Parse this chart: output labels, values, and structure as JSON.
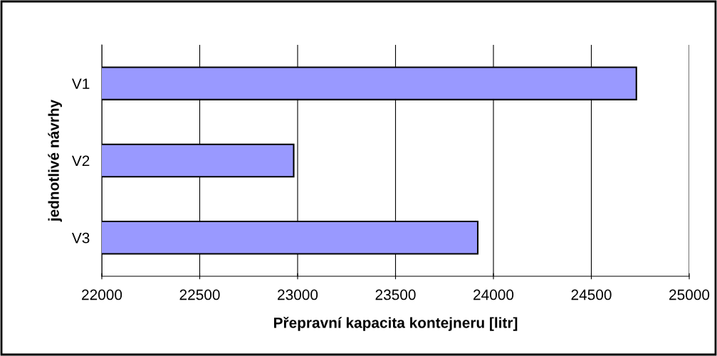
{
  "chart_data": {
    "type": "bar",
    "orientation": "horizontal",
    "xlabel": "Přepravní kapacita kontejneru [litr]",
    "ylabel": "jednotlivé návrhy",
    "categories": [
      "V1",
      "V2",
      "V3"
    ],
    "values": [
      24730,
      22980,
      23920
    ],
    "color": "#9999ff",
    "xlim": [
      22000,
      25000
    ],
    "xticks": [
      22000,
      22500,
      23000,
      23500,
      24000,
      24500,
      25000
    ],
    "grid": "x"
  }
}
